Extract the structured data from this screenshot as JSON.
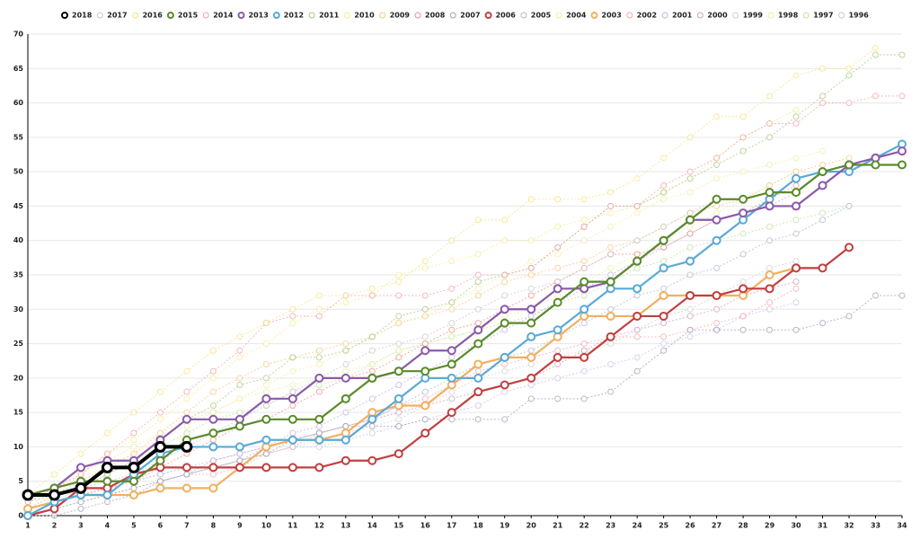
{
  "chart_data": {
    "type": "line",
    "x": [
      1,
      2,
      3,
      4,
      5,
      6,
      7,
      8,
      9,
      10,
      11,
      12,
      13,
      14,
      15,
      16,
      17,
      18,
      19,
      20,
      21,
      22,
      23,
      24,
      25,
      26,
      27,
      28,
      29,
      30,
      31,
      32,
      33,
      34
    ],
    "xlim": [
      1,
      34
    ],
    "xticks": [
      1,
      2,
      3,
      4,
      5,
      6,
      7,
      8,
      9,
      10,
      11,
      12,
      13,
      14,
      15,
      16,
      17,
      18,
      19,
      20,
      21,
      22,
      23,
      24,
      25,
      26,
      27,
      28,
      29,
      30,
      31,
      32,
      33,
      34
    ],
    "ylim": [
      0,
      70
    ],
    "yticks": [
      0,
      5,
      10,
      15,
      20,
      25,
      30,
      35,
      40,
      45,
      50,
      55,
      60,
      65,
      70
    ],
    "grid": true,
    "legend": "top",
    "series": [
      {
        "name": "2018",
        "color": "#000000",
        "line_style": "solid",
        "values": [
          3,
          3,
          4,
          7,
          7,
          10,
          10,
          null,
          null,
          null,
          null,
          null,
          null,
          null,
          null,
          null,
          null,
          null,
          null,
          null,
          null,
          null,
          null,
          null,
          null,
          null,
          null,
          null,
          null,
          null,
          null,
          null,
          null,
          null
        ]
      },
      {
        "name": "2017",
        "color": "#c8c8c8",
        "line_style": "dotted",
        "values": [
          2,
          3,
          4,
          5,
          6,
          8,
          10,
          12,
          14,
          16,
          18,
          20,
          22,
          24,
          25,
          26,
          28,
          30,
          32,
          33,
          34,
          36,
          38,
          40,
          42,
          44,
          46,
          null,
          null,
          null,
          null,
          null,
          null,
          null
        ]
      },
      {
        "name": "2016",
        "color": "#f4e47a",
        "line_style": "dotted",
        "values": [
          3,
          6,
          9,
          12,
          15,
          18,
          21,
          24,
          26,
          28,
          30,
          32,
          32,
          33,
          34,
          37,
          40,
          43,
          43,
          46,
          46,
          46,
          47,
          49,
          52,
          55,
          58,
          58,
          61,
          64,
          65,
          65,
          68,
          null
        ]
      },
      {
        "name": "2015",
        "color": "#5a8a2a",
        "line_style": "solid",
        "values": [
          3,
          4,
          5,
          5,
          5,
          8,
          11,
          12,
          13,
          14,
          14,
          14,
          17,
          20,
          21,
          21,
          22,
          25,
          28,
          28,
          31,
          34,
          34,
          37,
          40,
          43,
          46,
          46,
          47,
          47,
          50,
          51,
          51,
          51
        ]
      },
      {
        "name": "2014",
        "color": "#f4a0a8",
        "line_style": "dotted",
        "values": [
          2,
          4,
          6,
          9,
          12,
          15,
          18,
          21,
          24,
          28,
          29,
          29,
          32,
          32,
          32,
          32,
          33,
          35,
          35,
          36,
          39,
          42,
          45,
          45,
          48,
          50,
          52,
          55,
          57,
          57,
          60,
          60,
          61,
          61
        ]
      },
      {
        "name": "2013",
        "color": "#8a5aaa",
        "line_style": "solid",
        "values": [
          3,
          4,
          7,
          8,
          8,
          11,
          14,
          14,
          14,
          17,
          17,
          20,
          20,
          20,
          21,
          24,
          24,
          27,
          30,
          30,
          33,
          33,
          34,
          37,
          40,
          43,
          43,
          44,
          45,
          45,
          48,
          51,
          52,
          53
        ]
      },
      {
        "name": "2012",
        "color": "#5aaad6",
        "line_style": "solid",
        "values": [
          0,
          2,
          3,
          3,
          6,
          9,
          10,
          10,
          10,
          11,
          11,
          11,
          11,
          14,
          17,
          20,
          20,
          20,
          23,
          26,
          27,
          30,
          33,
          33,
          36,
          37,
          40,
          43,
          46,
          49,
          50,
          50,
          52,
          54
        ]
      },
      {
        "name": "2011",
        "color": "#a8c880",
        "line_style": "dotted",
        "values": [
          2,
          3,
          4,
          6,
          8,
          11,
          14,
          16,
          19,
          20,
          23,
          23,
          24,
          26,
          29,
          30,
          31,
          34,
          35,
          36,
          39,
          42,
          45,
          45,
          47,
          49,
          51,
          53,
          55,
          58,
          61,
          64,
          67,
          67
        ]
      },
      {
        "name": "2010",
        "color": "#f4ec90",
        "line_style": "dotted",
        "values": [
          2,
          3,
          6,
          9,
          11,
          14,
          17,
          20,
          23,
          25,
          28,
          30,
          31,
          32,
          35,
          36,
          37,
          38,
          40,
          40,
          42,
          43,
          44,
          45,
          47,
          49,
          52,
          55,
          57,
          59,
          null,
          null,
          null,
          null
        ]
      },
      {
        "name": "2009",
        "color": "#f8c880",
        "line_style": "dotted",
        "values": [
          1,
          3,
          5,
          7,
          9,
          12,
          15,
          18,
          20,
          22,
          23,
          24,
          25,
          26,
          28,
          29,
          30,
          32,
          34,
          35,
          36,
          37,
          39,
          40,
          42,
          44,
          45,
          46,
          48,
          50,
          51,
          52,
          null,
          null
        ]
      },
      {
        "name": "2008",
        "color": "#f09080",
        "line_style": "dotted",
        "values": [
          1,
          2,
          3,
          4,
          5,
          7,
          9,
          11,
          13,
          14,
          16,
          18,
          20,
          21,
          23,
          25,
          27,
          28,
          30,
          32,
          34,
          36,
          38,
          38,
          39,
          41,
          43,
          44,
          46,
          48,
          null,
          null,
          null,
          null
        ]
      },
      {
        "name": "2007",
        "color": "#a0a0b8",
        "line_style": "dotted",
        "values": [
          0,
          0,
          1,
          2,
          3,
          5,
          6,
          7,
          8,
          9,
          11,
          12,
          13,
          13,
          13,
          14,
          14,
          14,
          14,
          17,
          17,
          17,
          18,
          21,
          24,
          27,
          27,
          27,
          27,
          27,
          28,
          29,
          32,
          32
        ]
      },
      {
        "name": "2006",
        "color": "#c04040",
        "line_style": "solid",
        "values": [
          0,
          1,
          4,
          4,
          6,
          7,
          7,
          7,
          7,
          7,
          7,
          7,
          8,
          8,
          9,
          12,
          15,
          18,
          19,
          20,
          23,
          23,
          26,
          29,
          29,
          32,
          32,
          33,
          33,
          36,
          36,
          39,
          null,
          null
        ]
      },
      {
        "name": "2005",
        "color": "#b0b8d0",
        "line_style": "dotted",
        "values": [
          0,
          1,
          2,
          3,
          4,
          5,
          6,
          7,
          8,
          10,
          11,
          12,
          13,
          14,
          16,
          18,
          20,
          22,
          23,
          24,
          26,
          28,
          30,
          32,
          33,
          35,
          36,
          38,
          40,
          41,
          43,
          45,
          null,
          null
        ]
      },
      {
        "name": "2004",
        "color": "#f4eca0",
        "line_style": "dotted",
        "values": [
          1,
          3,
          5,
          7,
          9,
          11,
          13,
          15,
          17,
          19,
          21,
          22,
          24,
          26,
          28,
          29,
          31,
          33,
          35,
          37,
          38,
          40,
          42,
          44,
          46,
          47,
          49,
          50,
          51,
          52,
          53,
          null,
          null,
          null
        ]
      },
      {
        "name": "2003",
        "color": "#f0b060",
        "line_style": "solid",
        "values": [
          1,
          2,
          3,
          3,
          3,
          4,
          4,
          4,
          7,
          10,
          11,
          11,
          12,
          15,
          16,
          16,
          19,
          22,
          23,
          23,
          26,
          29,
          29,
          29,
          32,
          32,
          32,
          32,
          35,
          36,
          null,
          null,
          null,
          null
        ]
      },
      {
        "name": "2002",
        "color": "#f4a8b0",
        "line_style": "dotted",
        "values": [
          0,
          1,
          2,
          3,
          4,
          5,
          6,
          6,
          7,
          9,
          10,
          12,
          13,
          14,
          16,
          17,
          19,
          21,
          22,
          23,
          24,
          25,
          26,
          26,
          26,
          27,
          28,
          29,
          31,
          33,
          null,
          null,
          null,
          null
        ]
      },
      {
        "name": "2001",
        "color": "#c0b0e0",
        "line_style": "dotted",
        "values": [
          1,
          2,
          3,
          4,
          5,
          6,
          7,
          8,
          9,
          10,
          12,
          13,
          15,
          17,
          19,
          21,
          23,
          25,
          27,
          29,
          31,
          33,
          35,
          37,
          39,
          41,
          43,
          44,
          45,
          47,
          null,
          null,
          null,
          null
        ]
      },
      {
        "name": "2000",
        "color": "#d0a0c0",
        "line_style": "dotted",
        "values": [
          0,
          1,
          2,
          3,
          4,
          5,
          6,
          8,
          9,
          10,
          11,
          12,
          13,
          14,
          15,
          16,
          17,
          18,
          19,
          20,
          22,
          24,
          26,
          27,
          28,
          29,
          30,
          32,
          33,
          34,
          null,
          null,
          null,
          null
        ]
      },
      {
        "name": "1999",
        "color": "#d0d0d0",
        "line_style": "dotted",
        "values": [
          1,
          2,
          3,
          4,
          5,
          6,
          7,
          7,
          8,
          9,
          10,
          11,
          12,
          13,
          14,
          16,
          18,
          20,
          21,
          22,
          23,
          24,
          25,
          27,
          29,
          30,
          32,
          34,
          36,
          37,
          null,
          null,
          null,
          null
        ]
      },
      {
        "name": "1998",
        "color": "#e8f0a0",
        "line_style": "dotted",
        "values": [
          2,
          4,
          6,
          8,
          10,
          12,
          14,
          15,
          17,
          18,
          19,
          20,
          21,
          22,
          24,
          25,
          26,
          27,
          29,
          30,
          32,
          34,
          36,
          38,
          40,
          42,
          44,
          46,
          48,
          50,
          null,
          null,
          null,
          null
        ]
      },
      {
        "name": "1997",
        "color": "#c0e0a0",
        "line_style": "dotted",
        "values": [
          1,
          2,
          4,
          6,
          8,
          10,
          12,
          14,
          15,
          16,
          18,
          19,
          20,
          22,
          24,
          25,
          26,
          27,
          28,
          29,
          31,
          32,
          34,
          36,
          37,
          39,
          40,
          41,
          42,
          43,
          44,
          45,
          null,
          null
        ]
      },
      {
        "name": "1996",
        "color": "#d0c0e8",
        "line_style": "dotted",
        "values": [
          0,
          1,
          2,
          3,
          4,
          5,
          6,
          7,
          8,
          9,
          10,
          10,
          11,
          12,
          13,
          14,
          15,
          16,
          18,
          19,
          20,
          21,
          22,
          23,
          25,
          26,
          27,
          29,
          30,
          31,
          null,
          null,
          null,
          null
        ]
      }
    ]
  }
}
